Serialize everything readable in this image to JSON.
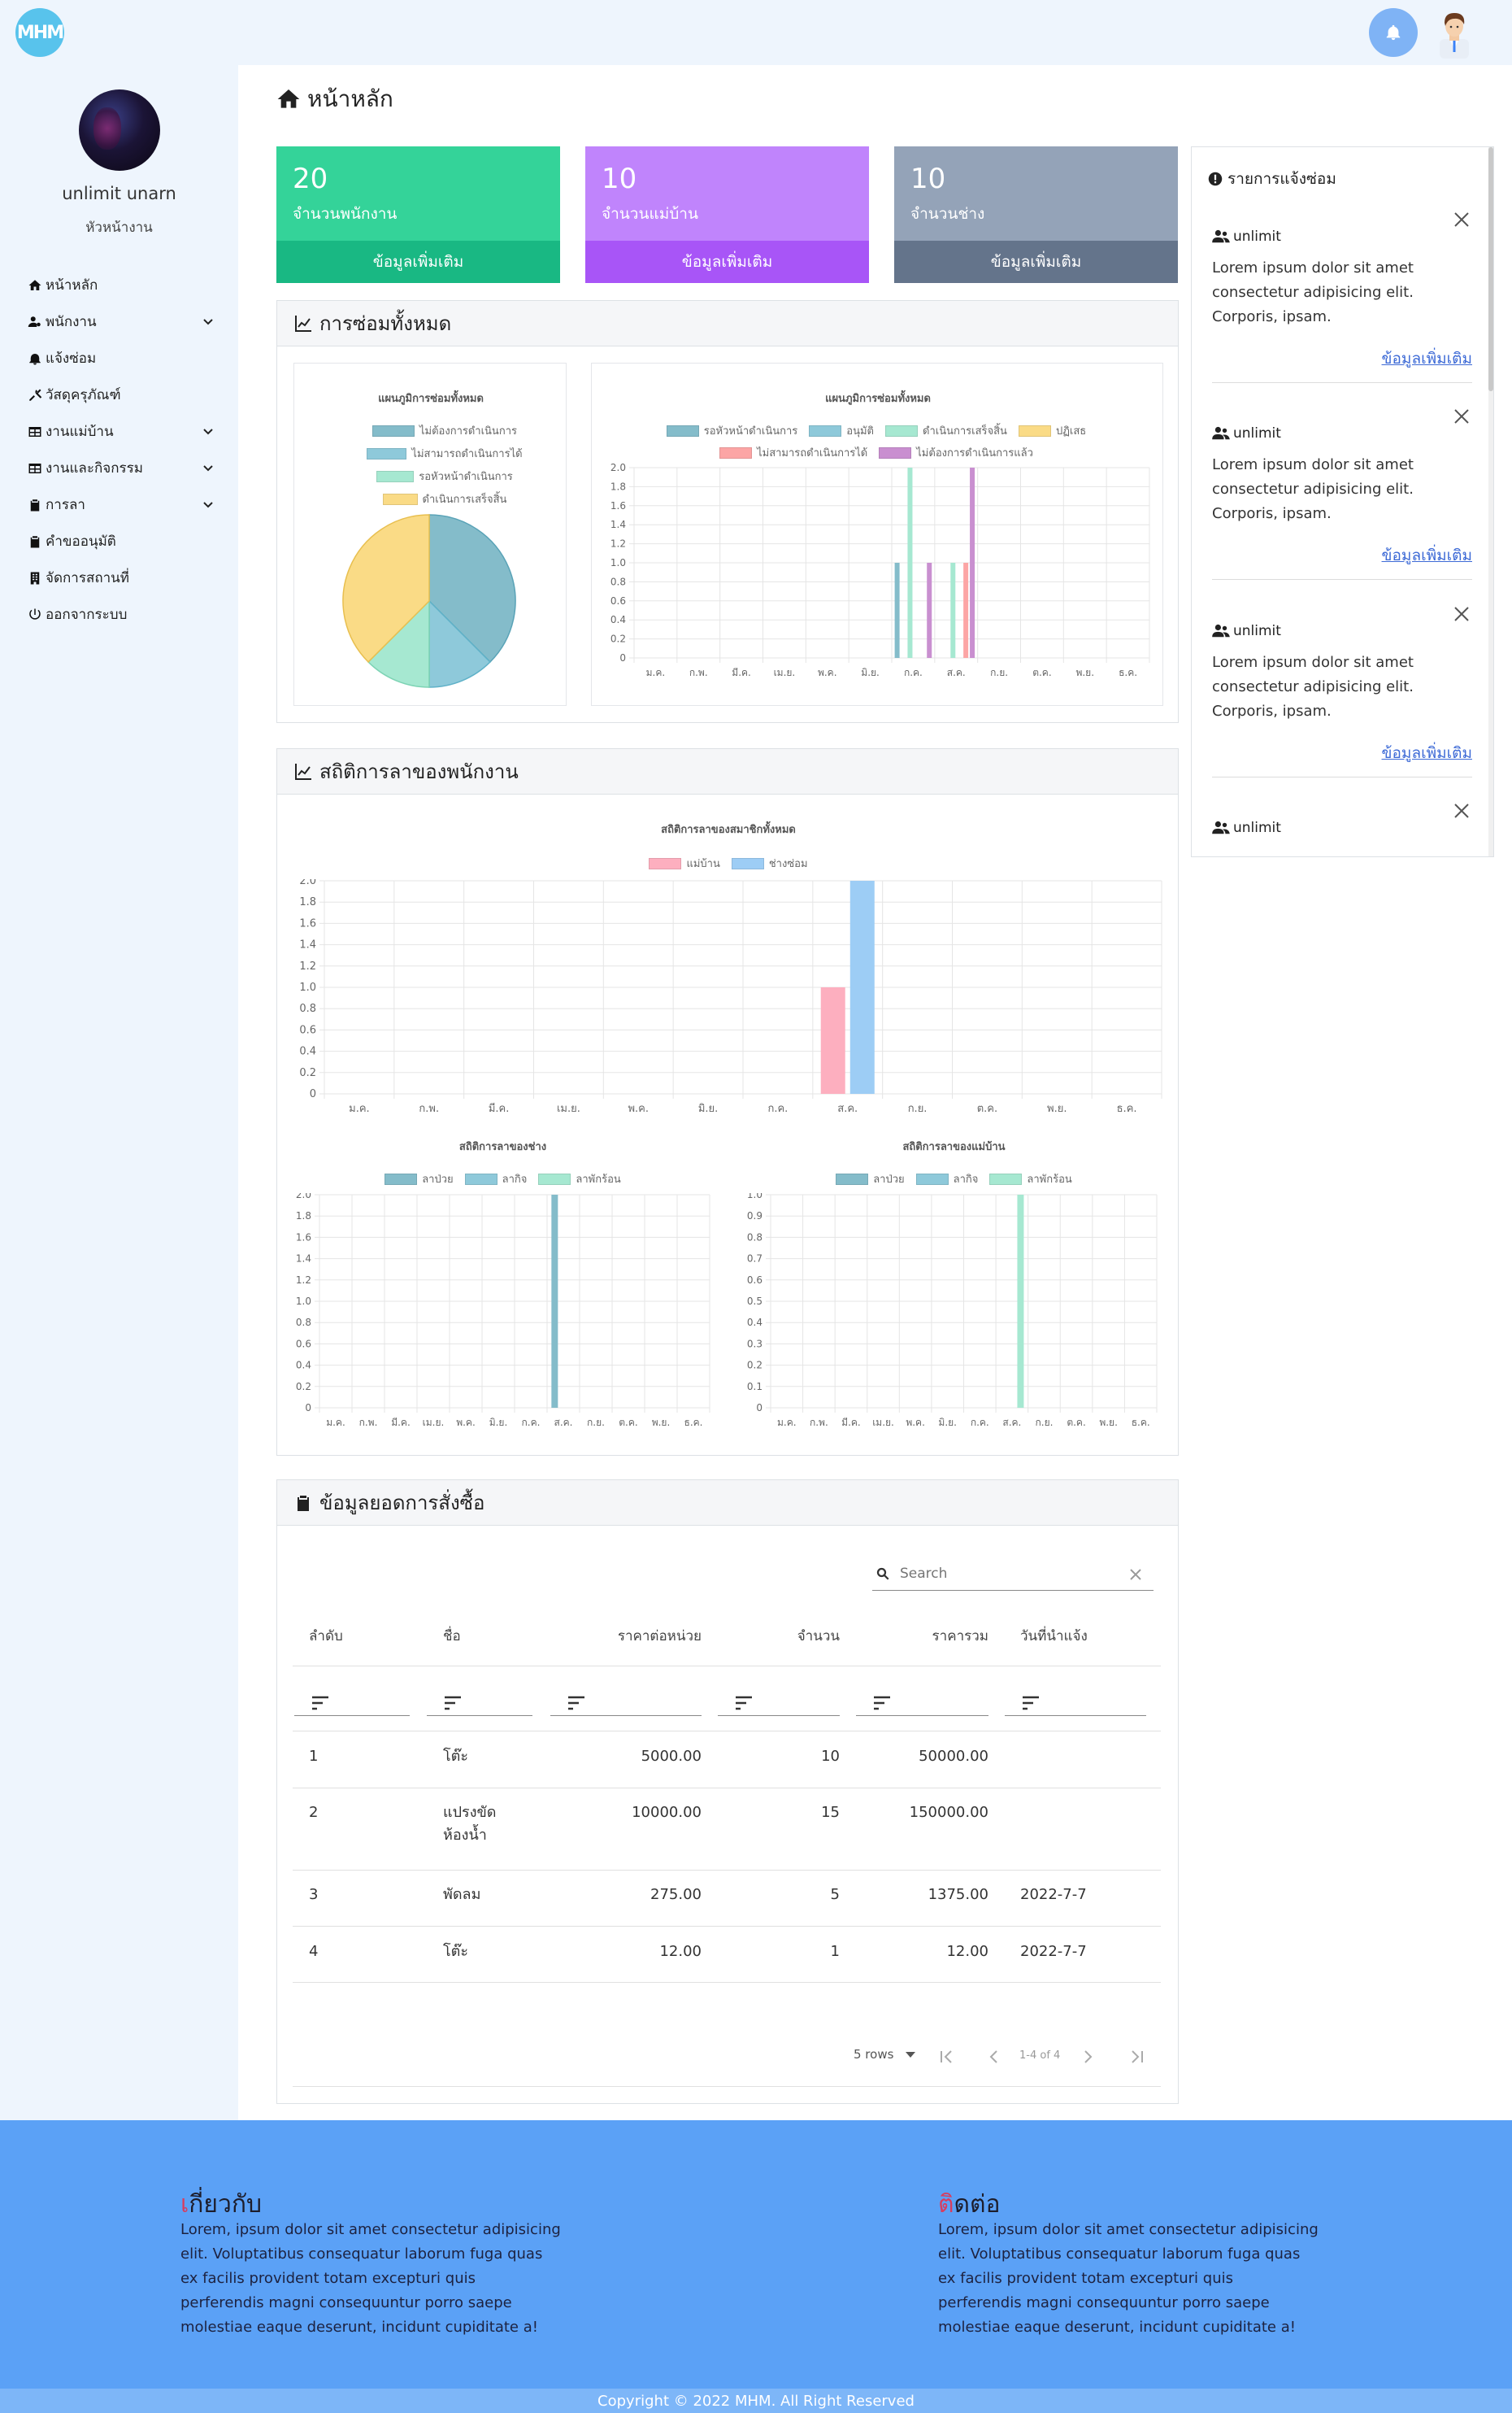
{
  "brand": {
    "logo_text": "MHM"
  },
  "sidebar": {
    "profile": {
      "name": "unlimit unarn",
      "role": "หัวหน้างาน"
    },
    "items": [
      {
        "label": "หน้าหลัก",
        "icon": "home-icon",
        "has_submenu": false
      },
      {
        "label": "พนักงาน",
        "icon": "user-cog-icon",
        "has_submenu": true
      },
      {
        "label": "แจ้งซ่อม",
        "icon": "bell-icon",
        "has_submenu": false
      },
      {
        "label": "วัสดุครุภัณฑ์",
        "icon": "tools-icon",
        "has_submenu": false
      },
      {
        "label": "งานแม่บ้าน",
        "icon": "table-icon",
        "has_submenu": true
      },
      {
        "label": "งานและกิจกรรม",
        "icon": "table-icon",
        "has_submenu": true
      },
      {
        "label": "การลา",
        "icon": "clipboard-icon",
        "has_submenu": true
      },
      {
        "label": "คำขออนุมัติ",
        "icon": "clipboard-check-icon",
        "has_submenu": false
      },
      {
        "label": "จัดการสถานที่",
        "icon": "building-icon",
        "has_submenu": false
      },
      {
        "label": "ออกจากระบบ",
        "icon": "power-icon",
        "has_submenu": false
      }
    ]
  },
  "main": {
    "title": "หน้าหลัก",
    "stats": [
      {
        "value": "20",
        "label": "จำนวนพนักงาน",
        "more": "ข้อมูลเพิ่มเติม",
        "color": "#34d399",
        "footer_color": "#19b883"
      },
      {
        "value": "10",
        "label": "จำนวนแม่บ้าน",
        "more": "ข้อมูลเพิ่มเติม",
        "color": "#c084fc",
        "footer_color": "#a855f7"
      },
      {
        "value": "10",
        "label": "จำนวนช่าง",
        "more": "ข้อมูลเพิ่มเติม",
        "color": "#94a3b8",
        "footer_color": "#64748b"
      }
    ],
    "repairs_panel": {
      "title": "การซ่อมทั้งหมด"
    },
    "leave_panel": {
      "title": "สถิติการลาของพนักงาน"
    },
    "orders_panel": {
      "title": "ข้อมูลยอดการสั่งซื้อ"
    }
  },
  "notifications": {
    "title": "รายการแจ้งซ่อม",
    "items": [
      {
        "user": "unlimit",
        "body": "Lorem ipsum dolor sit amet consectetur adipisicing elit. Corporis, ipsam.",
        "link": "ข้อมูลเพิ่มเติม"
      },
      {
        "user": "unlimit",
        "body": "Lorem ipsum dolor sit amet consectetur adipisicing elit. Corporis, ipsam.",
        "link": "ข้อมูลเพิ่มเติม"
      },
      {
        "user": "unlimit",
        "body": "Lorem ipsum dolor sit amet consectetur adipisicing elit. Corporis, ipsam.",
        "link": "ข้อมูลเพิ่มเติม"
      },
      {
        "user": "unlimit"
      }
    ]
  },
  "months": [
    "ม.ค.",
    "ก.พ.",
    "มี.ค.",
    "เม.ย.",
    "พ.ค.",
    "มิ.ย.",
    "ก.ค.",
    "ส.ค.",
    "ก.ย.",
    "ต.ค.",
    "พ.ย.",
    "ธ.ค."
  ],
  "chart_data": [
    {
      "type": "pie",
      "title": "แผนภูมิการซ่อมทั้งหมด",
      "labels": [
        "ไม่ต้องการดำเนินการ",
        "ไม่สามารถดำเนินการได้",
        "รอหัวหน้าดำเนินการ",
        "ดำเนินการเสร็จสิ้น"
      ],
      "values": [
        3,
        1,
        1,
        3
      ],
      "colors": [
        "#84bcca",
        "#8ec9da",
        "#a6e8d1",
        "#fadb86"
      ]
    },
    {
      "type": "bar",
      "title": "แผนภูมิการซ่อมทั้งหมด",
      "ylim": [
        0,
        2.0
      ],
      "yticks": [
        "0",
        "0.2",
        "0.4",
        "0.6",
        "0.8",
        "1.0",
        "1.2",
        "1.4",
        "1.6",
        "1.8",
        "2.0"
      ],
      "series": [
        {
          "name": "รอหัวหน้าดำเนินการ",
          "color": "#84bcca",
          "values": [
            0,
            0,
            0,
            0,
            0,
            0,
            1,
            0,
            0,
            0,
            0,
            0
          ]
        },
        {
          "name": "อนุมัติ",
          "color": "#8ec9da",
          "values": [
            0,
            0,
            0,
            0,
            0,
            0,
            0,
            0,
            0,
            0,
            0,
            0
          ]
        },
        {
          "name": "ดำเนินการเสร็จสิ้น",
          "color": "#a6e8d1",
          "values": [
            0,
            0,
            0,
            0,
            0,
            0,
            2,
            1,
            0,
            0,
            0,
            0
          ]
        },
        {
          "name": "ปฏิเสธ",
          "color": "#fadb86",
          "values": [
            0,
            0,
            0,
            0,
            0,
            0,
            0,
            0,
            0,
            0,
            0,
            0
          ]
        },
        {
          "name": "ไม่สามารถดำเนินการได้",
          "color": "#fca5a5",
          "values": [
            0,
            0,
            0,
            0,
            0,
            0,
            0,
            1,
            0,
            0,
            0,
            0
          ]
        },
        {
          "name": "ไม่ต้องการดำเนินการแล้ว",
          "color": "#c98fd0",
          "values": [
            0,
            0,
            0,
            0,
            0,
            0,
            1,
            2,
            0,
            0,
            0,
            0
          ]
        }
      ]
    },
    {
      "type": "bar",
      "title": "สถิติการลาของสมาชิกทั้งหมด",
      "ylim": [
        0,
        2.0
      ],
      "yticks": [
        "0",
        "0.2",
        "0.4",
        "0.6",
        "0.8",
        "1.0",
        "1.2",
        "1.4",
        "1.6",
        "1.8",
        "2.0"
      ],
      "series": [
        {
          "name": "แม่บ้าน",
          "color": "#fdafbf",
          "values": [
            0,
            0,
            0,
            0,
            0,
            0,
            0,
            1,
            0,
            0,
            0,
            0
          ]
        },
        {
          "name": "ช่างซ่อม",
          "color": "#9dcdf5",
          "values": [
            0,
            0,
            0,
            0,
            0,
            0,
            0,
            2,
            0,
            0,
            0,
            0
          ]
        }
      ]
    },
    {
      "type": "bar",
      "title": "สถิติการลาของช่าง",
      "ylim": [
        0,
        2.0
      ],
      "yticks": [
        "0",
        "0.2",
        "0.4",
        "0.6",
        "0.8",
        "1.0",
        "1.2",
        "1.4",
        "1.6",
        "1.8",
        "2.0"
      ],
      "series": [
        {
          "name": "ลาป่วย",
          "color": "#84bcca",
          "values": [
            0,
            0,
            0,
            0,
            0,
            0,
            0,
            2,
            0,
            0,
            0,
            0
          ]
        },
        {
          "name": "ลากิจ",
          "color": "#8ec9da",
          "values": [
            0,
            0,
            0,
            0,
            0,
            0,
            0,
            0,
            0,
            0,
            0,
            0
          ]
        },
        {
          "name": "ลาพักร้อน",
          "color": "#a6e8d1",
          "values": [
            0,
            0,
            0,
            0,
            0,
            0,
            0,
            0,
            0,
            0,
            0,
            0
          ]
        }
      ]
    },
    {
      "type": "bar",
      "title": "สถิติการลาของแม่บ้าน",
      "ylim": [
        0,
        1.0
      ],
      "yticks": [
        "0",
        "0.1",
        "0.2",
        "0.3",
        "0.4",
        "0.5",
        "0.6",
        "0.7",
        "0.8",
        "0.9",
        "1.0"
      ],
      "series": [
        {
          "name": "ลาป่วย",
          "color": "#84bcca",
          "values": [
            0,
            0,
            0,
            0,
            0,
            0,
            0,
            0,
            0,
            0,
            0,
            0
          ]
        },
        {
          "name": "ลากิจ",
          "color": "#8ec9da",
          "values": [
            0,
            0,
            0,
            0,
            0,
            0,
            0,
            0,
            0,
            0,
            0,
            0
          ]
        },
        {
          "name": "ลาพักร้อน",
          "color": "#a6e8d1",
          "values": [
            0,
            0,
            0,
            0,
            0,
            0,
            0,
            1,
            0,
            0,
            0,
            0
          ]
        }
      ]
    }
  ],
  "table": {
    "search_placeholder": "Search",
    "columns": [
      "ลำดับ",
      "ชื่อ",
      "ราคาต่อหน่วย",
      "จำนวน",
      "ราคารวม",
      "วันที่นำแจ้ง"
    ],
    "rows": [
      {
        "no": "1",
        "name": "โต๊ะ",
        "unit_price": "5000.00",
        "qty": "10",
        "total": "50000.00",
        "date": ""
      },
      {
        "no": "2",
        "name": "แปรงขัดห้องน้ำ",
        "unit_price": "10000.00",
        "qty": "15",
        "total": "150000.00",
        "date": ""
      },
      {
        "no": "3",
        "name": "พัดลม",
        "unit_price": "275.00",
        "qty": "5",
        "total": "1375.00",
        "date": "2022-7-7"
      },
      {
        "no": "4",
        "name": "โต๊ะ",
        "unit_price": "12.00",
        "qty": "1",
        "total": "12.00",
        "date": "2022-7-7"
      }
    ],
    "pagination": {
      "rows_per_page": "5 rows",
      "range": "1-4 of 4"
    }
  },
  "footer": {
    "about": {
      "title_first": "เ",
      "title_rest": "กี่ยวกับ",
      "text": "Lorem, ipsum dolor sit amet consectetur adipisicing elit. Voluptatibus consequatur laborum fuga quas ex facilis provident totam excepturi quis perferendis magni consequuntur porro saepe molestiae eaque deserunt, incidunt cupiditate a!"
    },
    "contact": {
      "title_first": "ติ",
      "title_rest": "ดต่อ",
      "text": "Lorem, ipsum dolor sit amet consectetur adipisicing elit. Voluptatibus consequatur laborum fuga quas ex facilis provident totam excepturi quis perferendis magni consequuntur porro saepe molestiae eaque deserunt, incidunt cupiditate a!"
    },
    "copyright": "Copyright © 2022 MHM. All Right Reserved"
  }
}
